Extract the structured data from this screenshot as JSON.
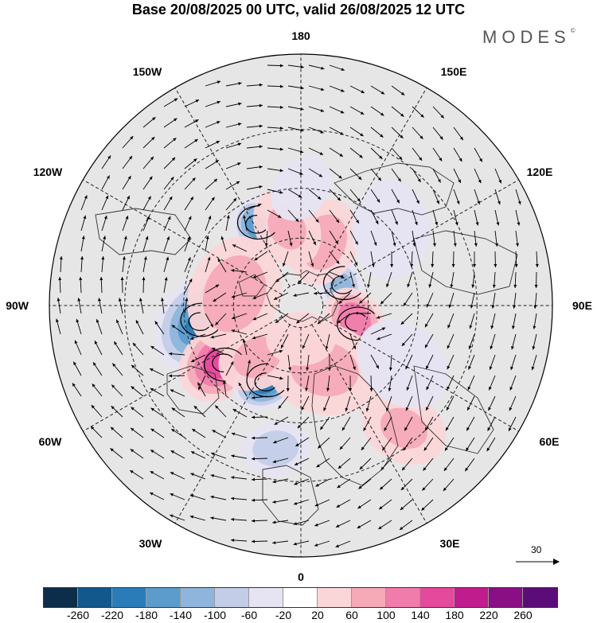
{
  "title": "Base 20/08/2025 00 UTC, valid 26/08/2025 12 UTC",
  "brand": "MODES",
  "brand_mark": "©",
  "longitude_labels": {
    "lon_180": "180",
    "lon_150E": "150E",
    "lon_120E": "120E",
    "lon_90E": "90E",
    "lon_60E": "60E",
    "lon_30E": "30E",
    "lon_0": "0",
    "lon_30W": "30W",
    "lon_60W": "60W",
    "lon_90W": "90W",
    "lon_120W": "120W",
    "lon_150W": "150W"
  },
  "reference_vector": {
    "value": "30"
  },
  "colorbar": {
    "colors": [
      "#0d2e4a",
      "#12588c",
      "#2a7cb8",
      "#5c9ccc",
      "#8fb5dc",
      "#c3cde8",
      "#e6e4f2",
      "#ffffff",
      "#fbd6d8",
      "#f6aab8",
      "#f07cab",
      "#e4499c",
      "#c01c8d",
      "#8b0f84",
      "#5c0c78"
    ],
    "ticks": [
      "-260",
      "-220",
      "-180",
      "-140",
      "-100",
      "-60",
      "-20",
      "20",
      "60",
      "100",
      "140",
      "180",
      "220",
      "260"
    ]
  },
  "anomaly_blobs": [
    {
      "lon": -80,
      "lat": 45,
      "value": -180,
      "spread": 1.6
    },
    {
      "lon": -55,
      "lat": 48,
      "value": 170,
      "spread": 1.4
    },
    {
      "lon": -25,
      "lat": 52,
      "value": -200,
      "spread": 0.9
    },
    {
      "lon": -150,
      "lat": 50,
      "value": -150,
      "spread": 0.8
    },
    {
      "lon": -100,
      "lat": 60,
      "value": 90,
      "spread": 1.8
    },
    {
      "lon": 115,
      "lat": 70,
      "value": -110,
      "spread": 0.8
    },
    {
      "lon": 75,
      "lat": 65,
      "value": 130,
      "spread": 1.0
    },
    {
      "lon": 20,
      "lat": 60,
      "value": 70,
      "spread": 1.8
    },
    {
      "lon": 40,
      "lat": 25,
      "value": 60,
      "spread": 1.3
    },
    {
      "lon": 160,
      "lat": 60,
      "value": 80,
      "spread": 1.3
    },
    {
      "lon": -170,
      "lat": 55,
      "value": 60,
      "spread": 1.2
    },
    {
      "lon": -10,
      "lat": 30,
      "value": -80,
      "spread": 1.0
    },
    {
      "lon": -40,
      "lat": 60,
      "value": 70,
      "spread": 1.2
    },
    {
      "lon": 0,
      "lat": 75,
      "value": 50,
      "spread": 1.0
    },
    {
      "lon": 130,
      "lat": 40,
      "value": -40,
      "spread": 1.5
    },
    {
      "lon": 60,
      "lat": 40,
      "value": -30,
      "spread": 1.5
    },
    {
      "lon": 180,
      "lat": 40,
      "value": -50,
      "spread": 1.0
    }
  ],
  "vortices": [
    {
      "lon": -80,
      "lat": 45,
      "sense": "ccw"
    },
    {
      "lon": -55,
      "lat": 48,
      "sense": "cw"
    },
    {
      "lon": -25,
      "lat": 52,
      "sense": "ccw"
    },
    {
      "lon": -150,
      "lat": 50,
      "sense": "ccw"
    },
    {
      "lon": 115,
      "lat": 70,
      "sense": "ccw"
    },
    {
      "lon": 75,
      "lat": 65,
      "sense": "cw"
    }
  ]
}
